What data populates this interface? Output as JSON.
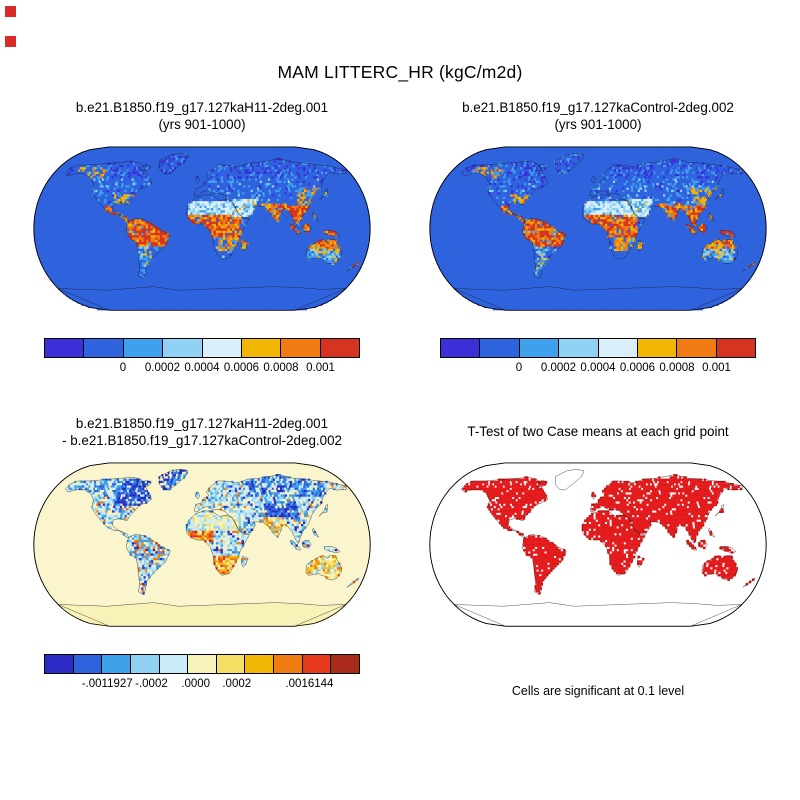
{
  "title": "MAM LITTERC_HR (kgC/m2d)",
  "corner_markers": {
    "color": "#DB2B27",
    "count": 2
  },
  "chart_data": [
    {
      "panel": "top_left",
      "type": "heatmap",
      "projection": "robinson",
      "variable": "LITTERC_HR",
      "season": "MAM",
      "units": "kgC/m2d",
      "title": "b.e21.B1850.f19_g17.127kaH11-2deg.001",
      "subtitle": "(yrs 901-1000)",
      "ocean_color": "#2F63DE",
      "colorbar": {
        "colors": [
          "#3B2FD8",
          "#2F63DE",
          "#3FA0EC",
          "#8FD2F4",
          "#D9EFFA",
          "#F2B705",
          "#F07C13",
          "#D53420"
        ],
        "tick_labels": [
          "0",
          "0.0002",
          "0.0004",
          "0.0006",
          "0.0008",
          "0.001"
        ],
        "tick_positions_pct": [
          25,
          37.5,
          50,
          62.5,
          75,
          87.5
        ],
        "value_range": [
          0,
          0.001
        ]
      }
    },
    {
      "panel": "top_right",
      "type": "heatmap",
      "projection": "robinson",
      "variable": "LITTERC_HR",
      "season": "MAM",
      "units": "kgC/m2d",
      "title": "b.e21.B1850.f19_g17.127kaControl-2deg.002",
      "subtitle": "(yrs 901-1000)",
      "ocean_color": "#2F63DE",
      "colorbar": {
        "colors": [
          "#3B2FD8",
          "#2F63DE",
          "#3FA0EC",
          "#8FD2F4",
          "#D9EFFA",
          "#F2B705",
          "#F07C13",
          "#D53420"
        ],
        "tick_labels": [
          "0",
          "0.0002",
          "0.0004",
          "0.0006",
          "0.0008",
          "0.001"
        ],
        "tick_positions_pct": [
          25,
          37.5,
          50,
          62.5,
          75,
          87.5
        ],
        "value_range": [
          0,
          0.001
        ]
      }
    },
    {
      "panel": "bottom_left",
      "type": "heatmap",
      "projection": "robinson",
      "variable": "LITTERC_HR difference",
      "season": "MAM",
      "units": "kgC/m2d",
      "title": "b.e21.B1850.f19_g17.127kaH11-2deg.001",
      "subtitle": "- b.e21.B1850.f19_g17.127kaControl-2deg.002",
      "ocean_color": "#FAF5CC",
      "colorbar": {
        "colors": [
          "#2B2BC4",
          "#2F63DE",
          "#3FA0EC",
          "#8FD2F4",
          "#C9EAF8",
          "#F8F2B8",
          "#F6E064",
          "#F2B705",
          "#F07C13",
          "#E53A1C",
          "#A82A1A"
        ],
        "tick_labels": [
          "-.0011927",
          "-.0002",
          ".0000",
          ".0002",
          ".0016144"
        ],
        "tick_positions_pct": [
          20,
          34,
          48,
          61,
          84
        ],
        "value_range": [
          -0.0011927,
          0.0016144
        ]
      }
    },
    {
      "panel": "bottom_right",
      "type": "significance_map",
      "projection": "robinson",
      "title": "T-Test of two Case means at each grid point",
      "note": "Cells are significant at 0.1 level",
      "significance_level": "0.1",
      "significant_color": "#E31B1C",
      "insignificant_color": "#FFFFFF"
    }
  ]
}
